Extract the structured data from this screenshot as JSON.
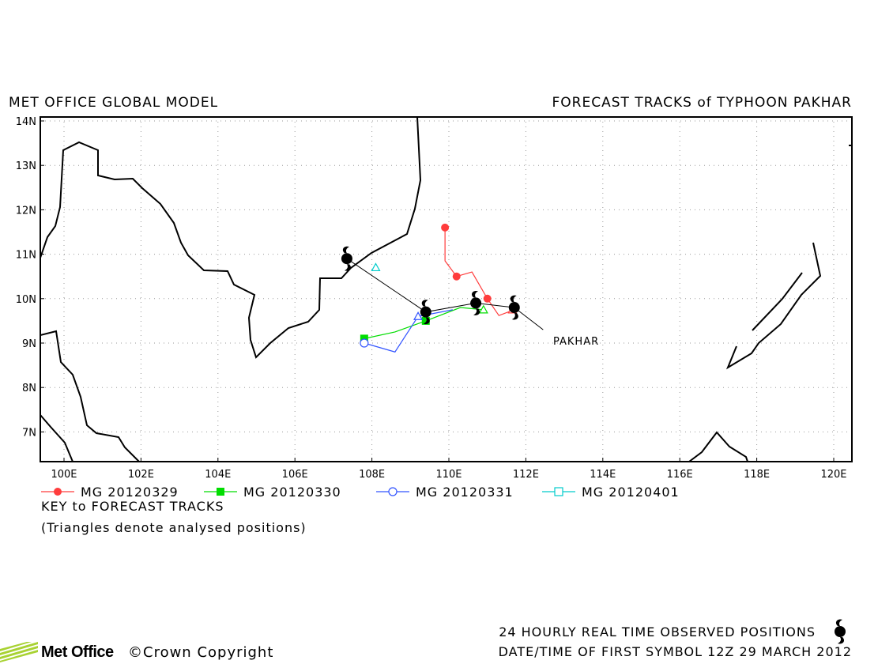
{
  "header": {
    "left_title": "MET OFFICE GLOBAL MODEL",
    "right_title": "FORECAST TRACKS of TYPHOON PAKHAR"
  },
  "map": {
    "lon_labels": [
      "100E",
      "102E",
      "104E",
      "106E",
      "108E",
      "110E",
      "112E",
      "114E",
      "116E",
      "118E",
      "120E"
    ],
    "lat_labels": [
      "14N",
      "13N",
      "12N",
      "11N",
      "10N",
      "9N",
      "8N",
      "7N"
    ],
    "storm_label": "PAKHAR",
    "observed_track": [
      [
        107.35,
        10.9
      ],
      [
        109.4,
        9.7
      ],
      [
        110.7,
        9.9
      ],
      [
        111.7,
        9.8
      ]
    ],
    "observed_tail": [
      [
        111.7,
        9.8
      ],
      [
        112.45,
        9.3
      ]
    ],
    "colors": {
      "observed": "#000000",
      "mg0329": "#ff3c3c",
      "mg0330": "#00dd00",
      "mg0331": "#3355ff",
      "mg0401": "#00cccc"
    }
  },
  "forecast_tracks": {
    "mg0329": {
      "points": [
        [
          111.7,
          9.75
        ],
        [
          111.3,
          9.62
        ],
        [
          111.0,
          10.0
        ],
        [
          110.6,
          10.6
        ],
        [
          110.2,
          10.5
        ],
        [
          109.9,
          10.85
        ],
        [
          109.9,
          11.6
        ]
      ],
      "markers": [
        [
          109.9,
          11.6
        ],
        [
          110.2,
          10.5
        ],
        [
          111.0,
          10.0
        ]
      ],
      "analysed": [
        [
          111.65,
          9.75
        ]
      ]
    },
    "mg0330": {
      "points": [
        [
          110.9,
          9.75
        ],
        [
          110.3,
          9.8
        ],
        [
          109.4,
          9.5
        ],
        [
          108.6,
          9.25
        ],
        [
          107.8,
          9.1
        ]
      ],
      "markers": [
        [
          109.4,
          9.5
        ],
        [
          107.8,
          9.1
        ]
      ],
      "analysed": [
        [
          110.9,
          9.75
        ]
      ]
    },
    "mg0331": {
      "points": [
        [
          110.1,
          9.75
        ],
        [
          109.2,
          9.6
        ],
        [
          108.6,
          8.8
        ],
        [
          107.8,
          9.0
        ]
      ],
      "markers": [
        [
          107.8,
          9.0
        ]
      ],
      "analysed": [
        [
          109.2,
          9.6
        ]
      ]
    },
    "mg0401": {
      "points": [],
      "markers": [],
      "analysed": [
        [
          108.1,
          10.7
        ]
      ]
    }
  },
  "legend": [
    {
      "key": "mg0329",
      "label": "MG 20120329",
      "marker": "filled-circle",
      "color": "#ff3c3c"
    },
    {
      "key": "mg0330",
      "label": "MG 20120330",
      "marker": "filled-square",
      "color": "#00dd00"
    },
    {
      "key": "mg0331",
      "label": "MG 20120331",
      "marker": "open-circle",
      "color": "#3355ff"
    },
    {
      "key": "mg0401",
      "label": "MG 20120401",
      "marker": "open-square",
      "color": "#00cccc"
    }
  ],
  "key_title": "KEY to FORECAST TRACKS",
  "key_note": "(Triangles denote analysed positions)",
  "footer": {
    "line1": "24 HOURLY REAL TIME OBSERVED POSITIONS",
    "line2": "DATE/TIME OF FIRST SYMBOL 12Z 29 MARCH 2012",
    "logo_text": "Met Office",
    "copyright": "©Crown Copyright",
    "symbol_icon": "typhoon-icon"
  }
}
